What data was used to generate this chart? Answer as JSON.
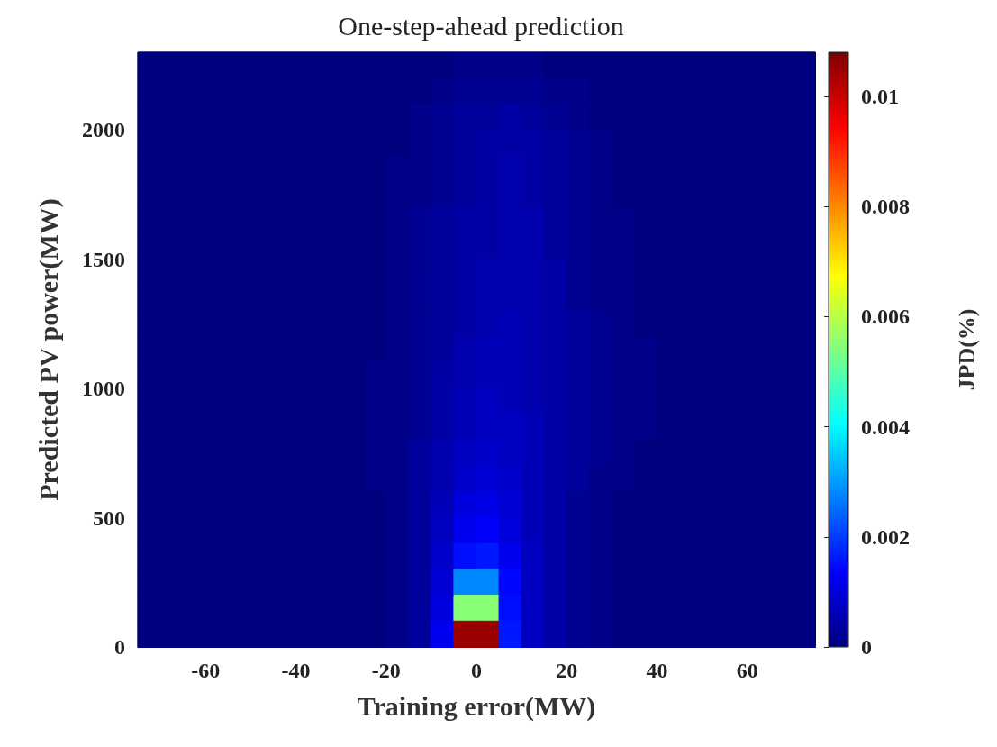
{
  "chart_data": {
    "type": "heatmap",
    "title": "One-step-ahead prediction",
    "xlabel": "Training error(MW)",
    "ylabel": "Predicted PV power(MW)",
    "clabel": "JPD(%)",
    "x": [
      -72.5,
      -67.5,
      -62.5,
      -57.5,
      -52.5,
      -47.5,
      -42.5,
      -37.5,
      -32.5,
      -27.5,
      -22.5,
      -17.5,
      -12.5,
      -7.5,
      -2.5,
      2.5,
      7.5,
      12.5,
      17.5,
      22.5,
      27.5,
      32.5,
      37.5,
      42.5,
      47.5,
      52.5,
      57.5,
      62.5,
      67.5,
      72.5
    ],
    "y": [
      2250,
      2150,
      2050,
      1950,
      1850,
      1750,
      1650,
      1550,
      1450,
      1350,
      1250,
      1150,
      1050,
      950,
      850,
      750,
      650,
      550,
      450,
      350,
      250,
      150,
      50
    ],
    "xlim": [
      -75,
      75
    ],
    "xticks": [
      -60,
      -40,
      -20,
      0,
      20,
      40,
      60
    ],
    "ylim": [
      0,
      2300
    ],
    "yticks": [
      0,
      500,
      1000,
      1500,
      2000
    ],
    "clim": [
      0,
      0.0108
    ],
    "cticks": [
      0,
      0.002,
      0.004,
      0.006,
      0.008,
      0.01
    ],
    "cells": [
      [
        0,
        0,
        0,
        0,
        0,
        0,
        0,
        0,
        0,
        0,
        0,
        0,
        0,
        0,
        0.0001,
        0.0001,
        0.0001,
        0.0001,
        0,
        0,
        0,
        0,
        0,
        0,
        0,
        0,
        0,
        0,
        0,
        0
      ],
      [
        0,
        0,
        0,
        0,
        0,
        0,
        0,
        0,
        0,
        0,
        0,
        0,
        0,
        0.0001,
        0.0002,
        0.0002,
        0.0002,
        0.0002,
        0.0001,
        0.0001,
        0,
        0,
        0,
        0,
        0,
        0,
        0,
        0,
        0,
        0
      ],
      [
        0,
        0,
        0,
        0,
        0,
        0,
        0,
        0,
        0,
        0,
        0,
        0,
        0.0001,
        0.0002,
        0.0003,
        0.0003,
        0.0004,
        0.0003,
        0.0002,
        0.0001,
        0,
        0,
        0,
        0,
        0,
        0,
        0,
        0,
        0,
        0
      ],
      [
        0,
        0,
        0,
        0,
        0,
        0,
        0,
        0,
        0,
        0,
        0,
        0,
        0.0001,
        0.0002,
        0.0003,
        0.0004,
        0.0004,
        0.0004,
        0.0003,
        0.0002,
        0.0001,
        0,
        0,
        0,
        0,
        0,
        0,
        0,
        0,
        0
      ],
      [
        0,
        0,
        0,
        0,
        0,
        0,
        0,
        0,
        0,
        0,
        0,
        0.0001,
        0.0001,
        0.0002,
        0.0003,
        0.0004,
        0.0005,
        0.0004,
        0.0003,
        0.0002,
        0.0001,
        0,
        0,
        0,
        0,
        0,
        0,
        0,
        0,
        0
      ],
      [
        0,
        0,
        0,
        0,
        0,
        0,
        0,
        0,
        0,
        0,
        0,
        0.0001,
        0.0001,
        0.0002,
        0.0003,
        0.0004,
        0.0005,
        0.0004,
        0.0003,
        0.0002,
        0.0001,
        0,
        0,
        0,
        0,
        0,
        0,
        0,
        0,
        0
      ],
      [
        0,
        0,
        0,
        0,
        0,
        0,
        0,
        0,
        0,
        0,
        0,
        0.0001,
        0.0002,
        0.0003,
        0.0004,
        0.0004,
        0.0005,
        0.0005,
        0.0003,
        0.0002,
        0.0001,
        0.0001,
        0,
        0,
        0,
        0,
        0,
        0,
        0,
        0
      ],
      [
        0,
        0,
        0,
        0,
        0,
        0,
        0,
        0,
        0,
        0,
        0,
        0.0001,
        0.0002,
        0.0003,
        0.0004,
        0.0004,
        0.0005,
        0.0005,
        0.0003,
        0.0002,
        0.0001,
        0.0001,
        0,
        0,
        0,
        0,
        0,
        0,
        0,
        0
      ],
      [
        0,
        0,
        0,
        0,
        0,
        0,
        0,
        0,
        0,
        0,
        0,
        0.0001,
        0.0002,
        0.0003,
        0.0004,
        0.0005,
        0.0005,
        0.0005,
        0.0004,
        0.0002,
        0.0001,
        0.0001,
        0,
        0,
        0,
        0,
        0,
        0,
        0,
        0
      ],
      [
        0,
        0,
        0,
        0,
        0,
        0,
        0,
        0,
        0,
        0,
        0,
        0.0001,
        0.0002,
        0.0003,
        0.0004,
        0.0005,
        0.0005,
        0.0005,
        0.0004,
        0.0002,
        0.0001,
        0.0001,
        0,
        0,
        0,
        0,
        0,
        0,
        0,
        0
      ],
      [
        0,
        0,
        0,
        0,
        0,
        0,
        0,
        0,
        0,
        0,
        0,
        0.0001,
        0.0002,
        0.0003,
        0.0004,
        0.0005,
        0.0006,
        0.0005,
        0.0004,
        0.0003,
        0.0002,
        0.0001,
        0,
        0,
        0,
        0,
        0,
        0,
        0,
        0
      ],
      [
        0,
        0,
        0,
        0,
        0,
        0,
        0,
        0,
        0,
        0,
        0,
        0.0001,
        0.0002,
        0.0003,
        0.0005,
        0.0006,
        0.0006,
        0.0005,
        0.0004,
        0.0003,
        0.0002,
        0.0001,
        0.0001,
        0,
        0,
        0,
        0,
        0,
        0,
        0
      ],
      [
        0,
        0,
        0,
        0,
        0,
        0,
        0,
        0,
        0,
        0,
        0.0001,
        0.0001,
        0.0002,
        0.0004,
        0.0005,
        0.0006,
        0.0006,
        0.0005,
        0.0004,
        0.0003,
        0.0002,
        0.0001,
        0.0001,
        0,
        0,
        0,
        0,
        0,
        0,
        0
      ],
      [
        0,
        0,
        0,
        0,
        0,
        0,
        0,
        0,
        0,
        0,
        0.0001,
        0.0001,
        0.0002,
        0.0004,
        0.0006,
        0.0007,
        0.0006,
        0.0005,
        0.0004,
        0.0003,
        0.0002,
        0.0001,
        0.0001,
        0,
        0,
        0,
        0,
        0,
        0,
        0
      ],
      [
        0,
        0,
        0,
        0,
        0,
        0,
        0,
        0,
        0,
        0,
        0.0001,
        0.0001,
        0.0002,
        0.0004,
        0.0006,
        0.0007,
        0.0007,
        0.0006,
        0.0004,
        0.0003,
        0.0002,
        0.0001,
        0.0001,
        0,
        0,
        0,
        0,
        0,
        0,
        0
      ],
      [
        0,
        0,
        0,
        0,
        0,
        0,
        0,
        0,
        0,
        0,
        0.0001,
        0.0001,
        0.0003,
        0.0005,
        0.0007,
        0.0008,
        0.0007,
        0.0006,
        0.0004,
        0.0003,
        0.0002,
        0.0001,
        0,
        0,
        0,
        0,
        0,
        0,
        0,
        0
      ],
      [
        0,
        0,
        0,
        0,
        0,
        0,
        0,
        0,
        0,
        0,
        0.0001,
        0.0001,
        0.0003,
        0.0005,
        0.0008,
        0.0009,
        0.0008,
        0.0006,
        0.0004,
        0.0003,
        0.0001,
        0.0001,
        0,
        0,
        0,
        0,
        0,
        0,
        0,
        0
      ],
      [
        0,
        0,
        0,
        0,
        0,
        0,
        0,
        0,
        0,
        0,
        0,
        0.0001,
        0.0003,
        0.0006,
        0.001,
        0.0011,
        0.0009,
        0.0006,
        0.0004,
        0.0002,
        0.0001,
        0,
        0,
        0,
        0,
        0,
        0,
        0,
        0,
        0
      ],
      [
        0,
        0,
        0,
        0,
        0,
        0,
        0,
        0,
        0,
        0,
        0,
        0.0001,
        0.0003,
        0.0007,
        0.0012,
        0.0013,
        0.001,
        0.0006,
        0.0004,
        0.0002,
        0.0001,
        0,
        0,
        0,
        0,
        0,
        0,
        0,
        0,
        0
      ],
      [
        0,
        0,
        0,
        0,
        0,
        0,
        0,
        0,
        0,
        0,
        0,
        0.0001,
        0.0003,
        0.0008,
        0.0015,
        0.0016,
        0.0012,
        0.0007,
        0.0004,
        0.0002,
        0.0001,
        0,
        0,
        0,
        0,
        0,
        0,
        0,
        0,
        0
      ],
      [
        0,
        0,
        0,
        0,
        0,
        0,
        0,
        0,
        0,
        0,
        0,
        0.0001,
        0.0003,
        0.0009,
        0.0028,
        0.0028,
        0.0014,
        0.0007,
        0.0004,
        0.0002,
        0.0001,
        0,
        0,
        0,
        0,
        0,
        0,
        0,
        0,
        0
      ],
      [
        0,
        0,
        0,
        0,
        0,
        0,
        0,
        0,
        0,
        0,
        0,
        0.0001,
        0.0003,
        0.001,
        0.0055,
        0.0055,
        0.0015,
        0.0007,
        0.0004,
        0.0002,
        0.0001,
        0,
        0,
        0,
        0,
        0,
        0,
        0,
        0,
        0
      ],
      [
        0,
        0,
        0,
        0,
        0,
        0,
        0,
        0,
        0,
        0,
        0,
        0.0001,
        0.0003,
        0.0012,
        0.0105,
        0.0105,
        0.0016,
        0.0007,
        0.0004,
        0.0002,
        0.0001,
        0,
        0,
        0,
        0,
        0,
        0,
        0,
        0,
        0
      ]
    ]
  }
}
